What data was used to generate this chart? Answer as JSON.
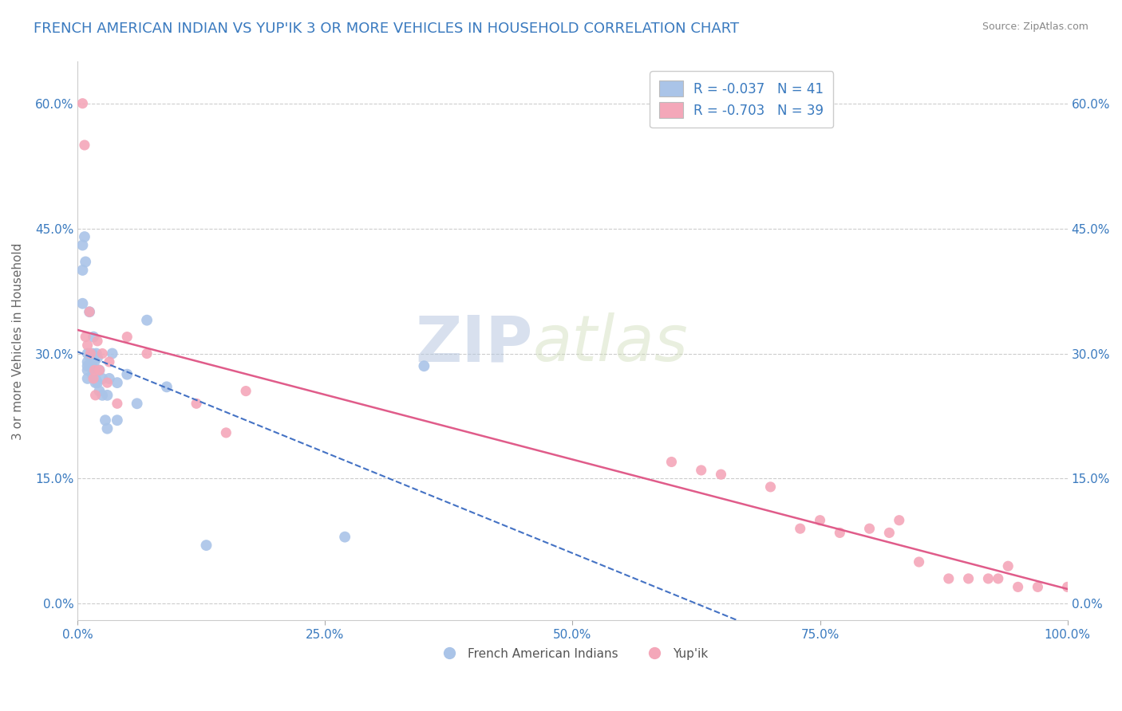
{
  "title": "FRENCH AMERICAN INDIAN VS YUP'IK 3 OR MORE VEHICLES IN HOUSEHOLD CORRELATION CHART",
  "source": "Source: ZipAtlas.com",
  "ylabel": "3 or more Vehicles in Household",
  "watermark_zip": "ZIP",
  "watermark_atlas": "atlas",
  "legend_blue": {
    "R": "-0.037",
    "N": "41",
    "label": "French American Indians"
  },
  "legend_pink": {
    "R": "-0.703",
    "N": "39",
    "label": "Yup'ik"
  },
  "title_color": "#3a7abf",
  "source_color": "#888888",
  "axis_color": "#3a7abf",
  "blue_dot_color": "#aac4e8",
  "pink_dot_color": "#f4a7b9",
  "blue_line_color": "#4472c4",
  "pink_line_color": "#e05c8a",
  "legend_text_color": "#3a7abf",
  "grid_color": "#cccccc",
  "background_color": "#ffffff",
  "xlim": [
    0.0,
    1.0
  ],
  "ylim": [
    -0.02,
    0.65
  ],
  "xticks": [
    0.0,
    0.25,
    0.5,
    0.75,
    1.0
  ],
  "yticks": [
    0.0,
    0.15,
    0.3,
    0.45,
    0.6
  ],
  "blue_scatter_x": [
    0.005,
    0.005,
    0.005,
    0.007,
    0.008,
    0.01,
    0.01,
    0.01,
    0.01,
    0.01,
    0.012,
    0.013,
    0.015,
    0.015,
    0.015,
    0.016,
    0.017,
    0.017,
    0.018,
    0.018,
    0.019,
    0.02,
    0.02,
    0.022,
    0.022,
    0.025,
    0.025,
    0.028,
    0.03,
    0.03,
    0.032,
    0.035,
    0.04,
    0.04,
    0.05,
    0.06,
    0.07,
    0.09,
    0.13,
    0.27,
    0.35
  ],
  "blue_scatter_y": [
    0.43,
    0.4,
    0.36,
    0.44,
    0.41,
    0.3,
    0.29,
    0.285,
    0.28,
    0.27,
    0.35,
    0.295,
    0.3,
    0.285,
    0.275,
    0.32,
    0.29,
    0.28,
    0.27,
    0.265,
    0.3,
    0.295,
    0.265,
    0.28,
    0.255,
    0.27,
    0.25,
    0.22,
    0.25,
    0.21,
    0.27,
    0.3,
    0.265,
    0.22,
    0.275,
    0.24,
    0.34,
    0.26,
    0.07,
    0.08,
    0.285
  ],
  "pink_scatter_x": [
    0.005,
    0.007,
    0.008,
    0.01,
    0.012,
    0.013,
    0.016,
    0.017,
    0.018,
    0.02,
    0.022,
    0.025,
    0.03,
    0.032,
    0.04,
    0.05,
    0.07,
    0.12,
    0.15,
    0.17,
    0.6,
    0.63,
    0.65,
    0.7,
    0.73,
    0.75,
    0.77,
    0.8,
    0.82,
    0.83,
    0.85,
    0.88,
    0.9,
    0.92,
    0.93,
    0.94,
    0.95,
    0.97,
    1.0
  ],
  "pink_scatter_y": [
    0.6,
    0.55,
    0.32,
    0.31,
    0.35,
    0.3,
    0.27,
    0.28,
    0.25,
    0.315,
    0.28,
    0.3,
    0.265,
    0.29,
    0.24,
    0.32,
    0.3,
    0.24,
    0.205,
    0.255,
    0.17,
    0.16,
    0.155,
    0.14,
    0.09,
    0.1,
    0.085,
    0.09,
    0.085,
    0.1,
    0.05,
    0.03,
    0.03,
    0.03,
    0.03,
    0.045,
    0.02,
    0.02,
    0.02
  ],
  "dot_size_blue": 100,
  "dot_size_pink": 90,
  "figsize": [
    14.06,
    8.92
  ],
  "dpi": 100
}
